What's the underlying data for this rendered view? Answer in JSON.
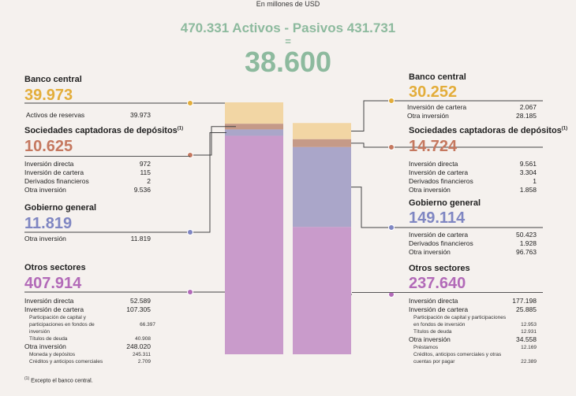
{
  "header": {
    "subtitle": "En millones de USD",
    "headline": "470.331 Activos - Pasivos 431.731",
    "equals": "=",
    "net": "38.600"
  },
  "colors": {
    "banco_central": "#f2d6a4",
    "sociedades": "#c59a88",
    "gobierno": "#aaa6c9",
    "otros": "#c99bcb",
    "banco_central_text": "#e3ad3a",
    "sociedades_text": "#c5785f",
    "gobierno_text": "#7f86c2",
    "otros_text": "#b26ab8"
  },
  "chart_data": {
    "type": "bar",
    "categories": [
      "Activos",
      "Pasivos"
    ],
    "stacked": true,
    "series": [
      {
        "name": "Banco central",
        "values": [
          39973,
          30252
        ]
      },
      {
        "name": "Sociedades captadoras de depósitos",
        "values": [
          10625,
          14724
        ]
      },
      {
        "name": "Gobierno general",
        "values": [
          11819,
          149114
        ]
      },
      {
        "name": "Otros sectores",
        "values": [
          407914,
          237640
        ]
      }
    ],
    "totals": [
      470331,
      431731
    ]
  },
  "left": {
    "bc": {
      "title": "Banco central",
      "value": "39.973",
      "rows": [
        {
          "label": "Activos de reservas",
          "value": "39.973"
        }
      ]
    },
    "scd": {
      "title": "Sociedades captadoras de depósitos",
      "note": "(1)",
      "value": "10.625",
      "rows": [
        {
          "label": "Inversión directa",
          "value": "972"
        },
        {
          "label": "Inversión de cartera",
          "value": "115"
        },
        {
          "label": "Derivados financieros",
          "value": "2"
        },
        {
          "label": "Otra inversión",
          "value": "9.536"
        }
      ]
    },
    "gg": {
      "title": "Gobierno general",
      "value": "11.819",
      "rows": [
        {
          "label": "Otra inversión",
          "value": "11.819"
        }
      ]
    },
    "os": {
      "title": "Otros sectores",
      "value": "407.914",
      "rows": [
        {
          "label": "Inversión directa",
          "value": "52.589"
        },
        {
          "label": "Inversión de cartera",
          "value": "107.305"
        }
      ],
      "sub1": [
        {
          "label": "Participación de capital y participaciones en fondos de inversión",
          "value": "66.397"
        },
        {
          "label": "Títulos de deuda",
          "value": "40.908"
        }
      ],
      "row3": {
        "label": "Otra inversión",
        "value": "248.020"
      },
      "sub2": [
        {
          "label": "Moneda y depósitos",
          "value": "245.311"
        },
        {
          "label": "Créditos y anticipos comerciales",
          "value": "2.709"
        }
      ]
    }
  },
  "right": {
    "bc": {
      "title": "Banco central",
      "value": "30.252",
      "rows": [
        {
          "label": "Inversión de cartera",
          "value": "2.067"
        },
        {
          "label": "Otra inversión",
          "value": "28.185"
        }
      ]
    },
    "scd": {
      "title": "Sociedades captadoras de depósitos",
      "note": "(1)",
      "value": "14.724",
      "rows": [
        {
          "label": "Inversión directa",
          "value": "9.561"
        },
        {
          "label": "Inversión de cartera",
          "value": "3.304"
        },
        {
          "label": "Derivados financieros",
          "value": "1"
        },
        {
          "label": "Otra inversión",
          "value": "1.858"
        }
      ]
    },
    "gg": {
      "title": "Gobierno general",
      "value": "149.114",
      "rows": [
        {
          "label": "Inversión de cartera",
          "value": "50.423"
        },
        {
          "label": "Derivados financieros",
          "value": "1.928"
        },
        {
          "label": "Otra inversión",
          "value": "96.763"
        }
      ]
    },
    "os": {
      "title": "Otros sectores",
      "value": "237.640",
      "rows": [
        {
          "label": "Inversión directa",
          "value": "177.198"
        },
        {
          "label": "Inversión de cartera",
          "value": "25.885"
        }
      ],
      "sub1": [
        {
          "label": "Participación de capital y participaciones en fondos de inversión",
          "value": "12.953"
        },
        {
          "label": "Títulos de deuda",
          "value": "12.931"
        }
      ],
      "row3": {
        "label": "Otra inversión",
        "value": "34.558"
      },
      "sub2": [
        {
          "label": "Préstamos",
          "value": "12.169"
        },
        {
          "label": "Créditos, anticipos comerciales y otras cuentas por pagar",
          "value": "22.389"
        }
      ]
    }
  },
  "footnote": {
    "mark": "(1)",
    "text": "Excepto el banco central."
  }
}
